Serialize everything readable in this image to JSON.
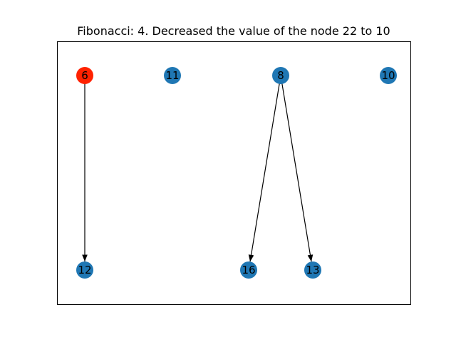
{
  "title": "Fibonacci: 4. Decreased the value of the node 22 to 10",
  "colors": {
    "node": "#1f77b4",
    "highlight": "#ff2200",
    "edge": "#000000",
    "frame": "#000000"
  },
  "graph": {
    "nodes": [
      {
        "id": "n6",
        "label": "6",
        "highlighted": true
      },
      {
        "id": "n11",
        "label": "11",
        "highlighted": false
      },
      {
        "id": "n8",
        "label": "8",
        "highlighted": false
      },
      {
        "id": "n10",
        "label": "10",
        "highlighted": false
      },
      {
        "id": "n12",
        "label": "12",
        "highlighted": false
      },
      {
        "id": "n16",
        "label": "16",
        "highlighted": false
      },
      {
        "id": "n13",
        "label": "13",
        "highlighted": false
      }
    ],
    "edges": [
      {
        "from": "n6",
        "to": "n12"
      },
      {
        "from": "n8",
        "to": "n16"
      },
      {
        "from": "n8",
        "to": "n13"
      }
    ]
  }
}
